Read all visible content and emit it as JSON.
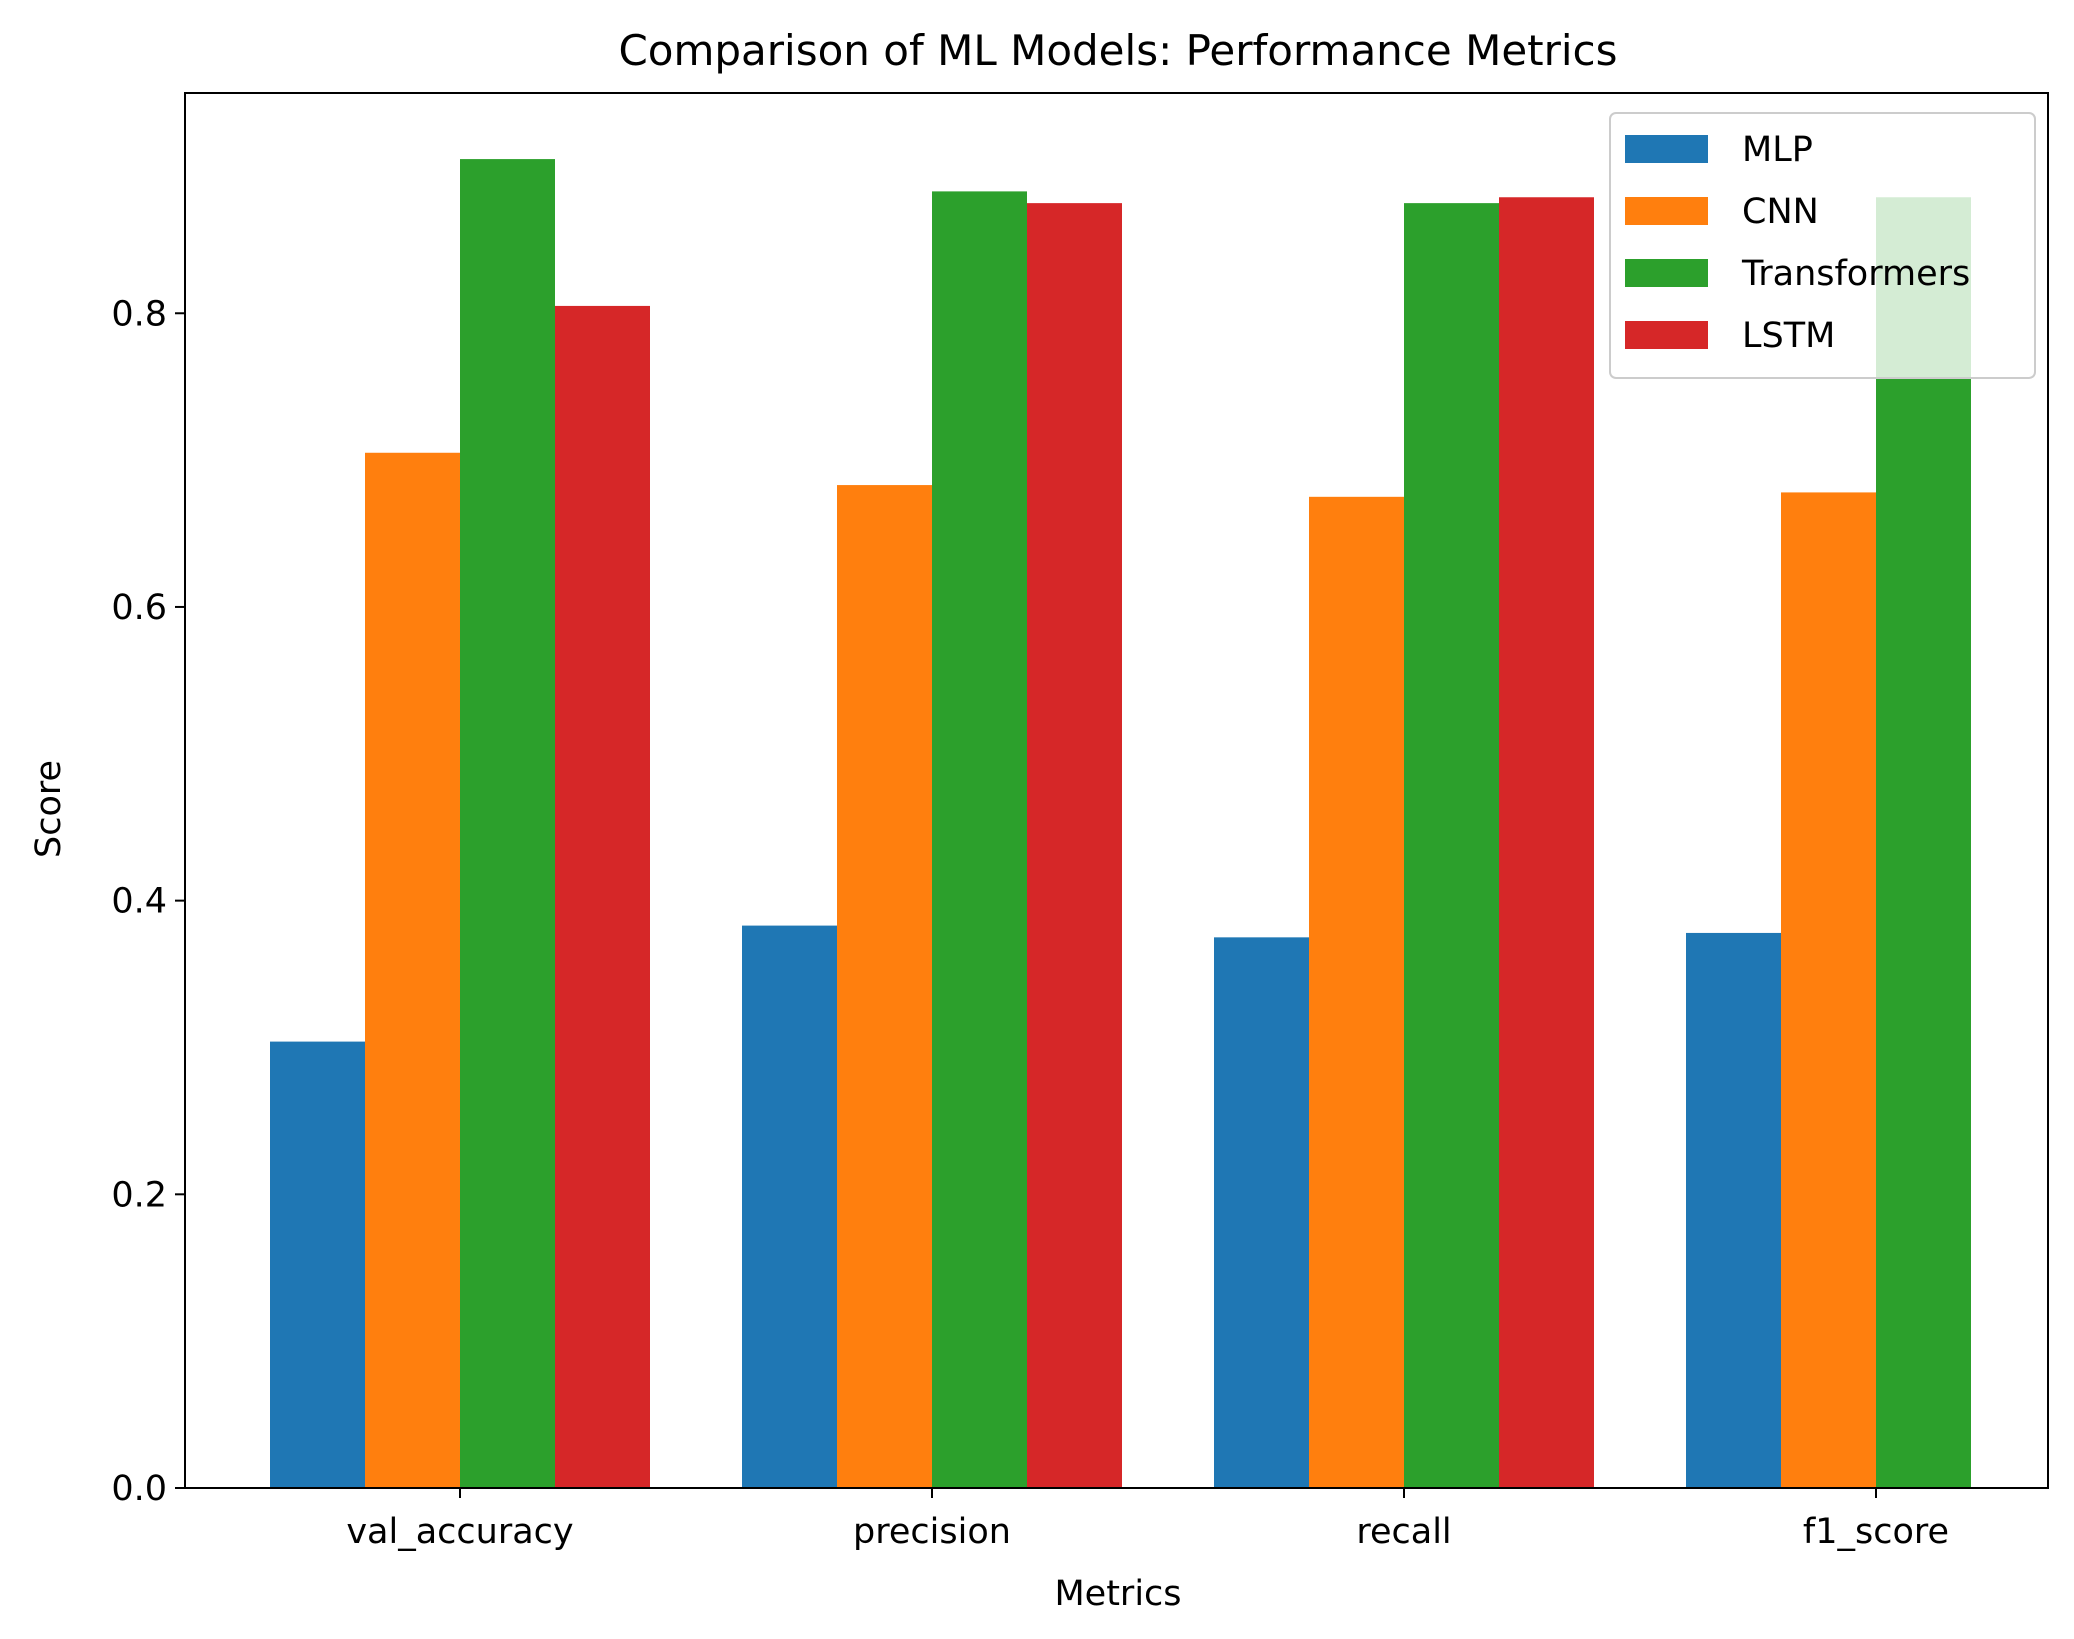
{
  "chart_data": {
    "type": "bar",
    "title": "Comparison of ML Models: Performance Metrics",
    "xlabel": "Metrics",
    "ylabel": "Score",
    "categories": [
      "val_accuracy",
      "precision",
      "recall",
      "f1_score"
    ],
    "series": [
      {
        "name": "MLP",
        "color": "#1f77b4",
        "values": [
          0.304,
          0.383,
          0.375,
          0.378
        ]
      },
      {
        "name": "CNN",
        "color": "#ff7f0e",
        "values": [
          0.705,
          0.683,
          0.675,
          0.678
        ]
      },
      {
        "name": "Transformers",
        "color": "#2ca02c",
        "values": [
          0.905,
          0.883,
          0.875,
          0.879
        ]
      },
      {
        "name": "LSTM",
        "color": "#d62728",
        "values": [
          0.805,
          0.875,
          0.879,
          null
        ]
      }
    ],
    "ylim": [
      0,
      0.95
    ],
    "yticks": [
      0.0,
      0.2,
      0.4,
      0.6,
      0.8
    ],
    "ytick_labels": [
      "0.0",
      "0.2",
      "0.4",
      "0.6",
      "0.8"
    ],
    "grid": false,
    "legend_position": "top-right"
  }
}
